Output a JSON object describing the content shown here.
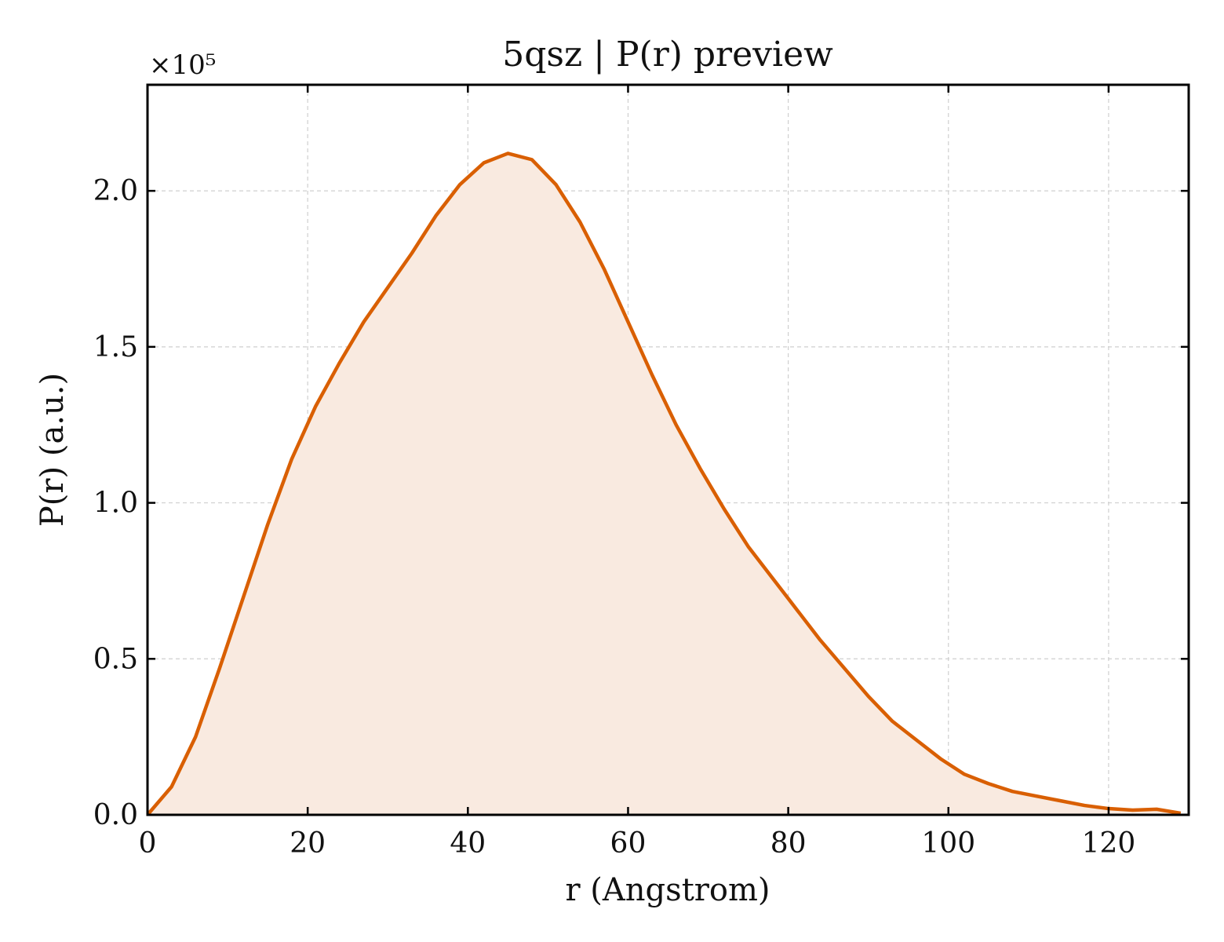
{
  "chart_data": {
    "type": "area",
    "title": "5qsz | P(r) preview",
    "xlabel": "r (Angstrom)",
    "ylabel": "P(r) (a.u.)",
    "y_offset_text": "×10⁵",
    "y_scale_factor": 100000,
    "xlim": [
      0,
      130
    ],
    "ylim": [
      0,
      2.34
    ],
    "xticks": [
      0,
      20,
      40,
      60,
      80,
      100,
      120
    ],
    "xtick_labels": [
      "0",
      "20",
      "40",
      "60",
      "80",
      "100",
      "120"
    ],
    "yticks": [
      0,
      0.5,
      1.0,
      1.5,
      2.0
    ],
    "ytick_labels": [
      "0.0",
      "0.5",
      "1.0",
      "1.5",
      "2.0"
    ],
    "grid": true,
    "line_color": "#d95f02",
    "fill_color": "#f9eae0",
    "series": [
      {
        "x": [
          0,
          3,
          6,
          9,
          12,
          15,
          18,
          21,
          24,
          27,
          30,
          33,
          36,
          39,
          42,
          45,
          48,
          51,
          54,
          57,
          60,
          63,
          66,
          69,
          72,
          75,
          78,
          81,
          84,
          87,
          90,
          93,
          96,
          99,
          102,
          105,
          108,
          111,
          114,
          117,
          120,
          123,
          126,
          129
        ],
        "y": [
          0.0,
          0.09,
          0.25,
          0.47,
          0.7,
          0.93,
          1.14,
          1.31,
          1.45,
          1.58,
          1.69,
          1.8,
          1.92,
          2.02,
          2.09,
          2.12,
          2.1,
          2.02,
          1.9,
          1.75,
          1.58,
          1.41,
          1.25,
          1.11,
          0.98,
          0.86,
          0.76,
          0.66,
          0.56,
          0.47,
          0.38,
          0.3,
          0.24,
          0.18,
          0.13,
          0.1,
          0.075,
          0.06,
          0.045,
          0.03,
          0.02,
          0.015,
          0.018,
          0.005
        ]
      }
    ]
  }
}
